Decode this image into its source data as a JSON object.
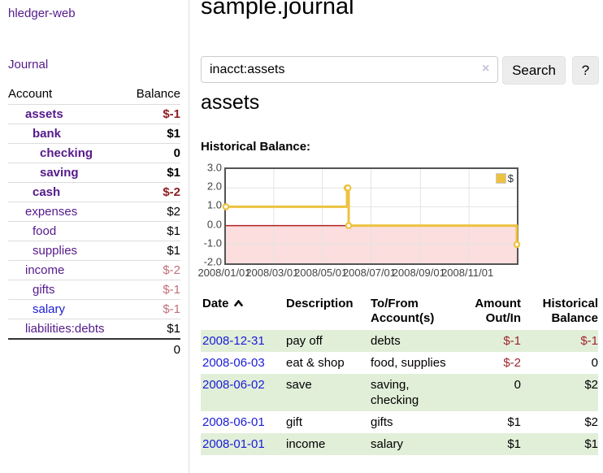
{
  "sidebar": {
    "brand": "hledger-web",
    "journal_link": "Journal",
    "accounts_table": {
      "headers": [
        "Account",
        "Balance"
      ],
      "rows": [
        {
          "name": "assets",
          "indent": 1,
          "bold": true,
          "balance": "$-1",
          "balance_style": "neg-strong"
        },
        {
          "name": "bank",
          "indent": 2,
          "bold": true,
          "balance": "$1",
          "balance_style": ""
        },
        {
          "name": "checking",
          "indent": 3,
          "bold": true,
          "balance": "0",
          "balance_style": ""
        },
        {
          "name": "saving",
          "indent": 3,
          "bold": true,
          "balance": "$1",
          "balance_style": ""
        },
        {
          "name": "cash",
          "indent": 2,
          "bold": true,
          "balance": "$-2",
          "balance_style": "neg-strong"
        },
        {
          "name": "expenses",
          "indent": 1,
          "bold": false,
          "balance": "$2",
          "balance_style": ""
        },
        {
          "name": "food",
          "indent": 2,
          "bold": false,
          "balance": "$1",
          "balance_style": ""
        },
        {
          "name": "supplies",
          "indent": 2,
          "bold": false,
          "balance": "$1",
          "balance_style": ""
        },
        {
          "name": "income",
          "indent": 1,
          "bold": false,
          "balance": "$-2",
          "balance_style": "neg-muted"
        },
        {
          "name": "gifts",
          "indent": 2,
          "bold": false,
          "balance": "$-1",
          "balance_style": "neg-muted"
        },
        {
          "name": "salary",
          "indent": 2,
          "bold": false,
          "balance": "$-1",
          "balance_style": "neg-muted",
          "unvisited": true
        },
        {
          "name": "liabilities:debts",
          "indent": 1,
          "bold": false,
          "balance": "$1",
          "balance_style": ""
        }
      ],
      "total": "0"
    }
  },
  "header": {
    "title": "sample.journal"
  },
  "search": {
    "value": "inacct:assets",
    "clear_icon": "×",
    "button_label": "Search",
    "help_label": "?"
  },
  "account_page": {
    "heading": "assets",
    "chart_label": "Historical Balance:"
  },
  "chart_data": {
    "type": "line",
    "step": true,
    "title": "Historical Balance:",
    "series": [
      {
        "name": "$",
        "color": "#edc240",
        "points": [
          {
            "x": "2008-01-01",
            "y": 1
          },
          {
            "x": "2008-06-01",
            "y": 2
          },
          {
            "x": "2008-06-02",
            "y": 2
          },
          {
            "x": "2008-06-03",
            "y": 0
          },
          {
            "x": "2008-12-31",
            "y": -1
          }
        ]
      }
    ],
    "xlim": [
      "2008-01-01",
      "2008-12-31"
    ],
    "ylim": [
      -2,
      3
    ],
    "x_ticks": [
      {
        "x": "2008-01-01",
        "label": "2008/01/01"
      },
      {
        "x": "2008-03-01",
        "label": "2008/03/01"
      },
      {
        "x": "2008-05-01",
        "label": "2008/05/01"
      },
      {
        "x": "2008-07-01",
        "label": "2008/07/01"
      },
      {
        "x": "2008-09-01",
        "label": "2008/09/01"
      },
      {
        "x": "2008-11-01",
        "label": "2008/11/01"
      }
    ],
    "y_ticks": [
      {
        "v": 3,
        "label": "3.0"
      },
      {
        "v": 2,
        "label": "2.0"
      },
      {
        "v": 1,
        "label": "1.0"
      },
      {
        "v": 0,
        "label": "0.0"
      },
      {
        "v": -1,
        "label": "-1.0"
      },
      {
        "v": -2,
        "label": "-2.0"
      }
    ],
    "grid": true,
    "legend": {
      "position": "top-right",
      "entries": [
        "$"
      ]
    },
    "negative_region_color": "#fcdede",
    "zero_line_color": "#b02020"
  },
  "register": {
    "headers": {
      "date": "Date",
      "description": "Description",
      "accounts_line1": "To/From",
      "accounts_line2": "Account(s)",
      "amount_line1": "Amount",
      "amount_line2": "Out/In",
      "balance_line1": "Historical",
      "balance_line2": "Balance"
    },
    "sort": {
      "column": "date",
      "direction": "asc"
    },
    "rows": [
      {
        "date": "2008-12-31",
        "description": "pay off",
        "accounts": [
          "debts"
        ],
        "amount": "$-1",
        "balance": "$-1"
      },
      {
        "date": "2008-06-03",
        "description": "eat & shop",
        "accounts": [
          "food",
          "supplies"
        ],
        "amount": "$-2",
        "balance": "0"
      },
      {
        "date": "2008-06-02",
        "description": "save",
        "accounts": [
          "saving",
          "checking"
        ],
        "amount": "0",
        "balance": "$2"
      },
      {
        "date": "2008-06-01",
        "description": "gift",
        "accounts": [
          "gifts"
        ],
        "amount": "$1",
        "balance": "$2"
      },
      {
        "date": "2008-01-01",
        "description": "income",
        "accounts": [
          "salary"
        ],
        "amount": "$1",
        "balance": "$1"
      }
    ]
  },
  "colors": {
    "purple": "#551a8b",
    "blue": "#1b1bd8",
    "neg-strong": "#8f1d24",
    "neg-muted": "#c2707a",
    "neg-table": "#9e2430",
    "stripe": "#e1efd8",
    "divider": "#dddddd",
    "btn-bg": "#ececec",
    "chart-border": "#545454",
    "grid": "#e3e3e3",
    "series": "#edc240"
  }
}
